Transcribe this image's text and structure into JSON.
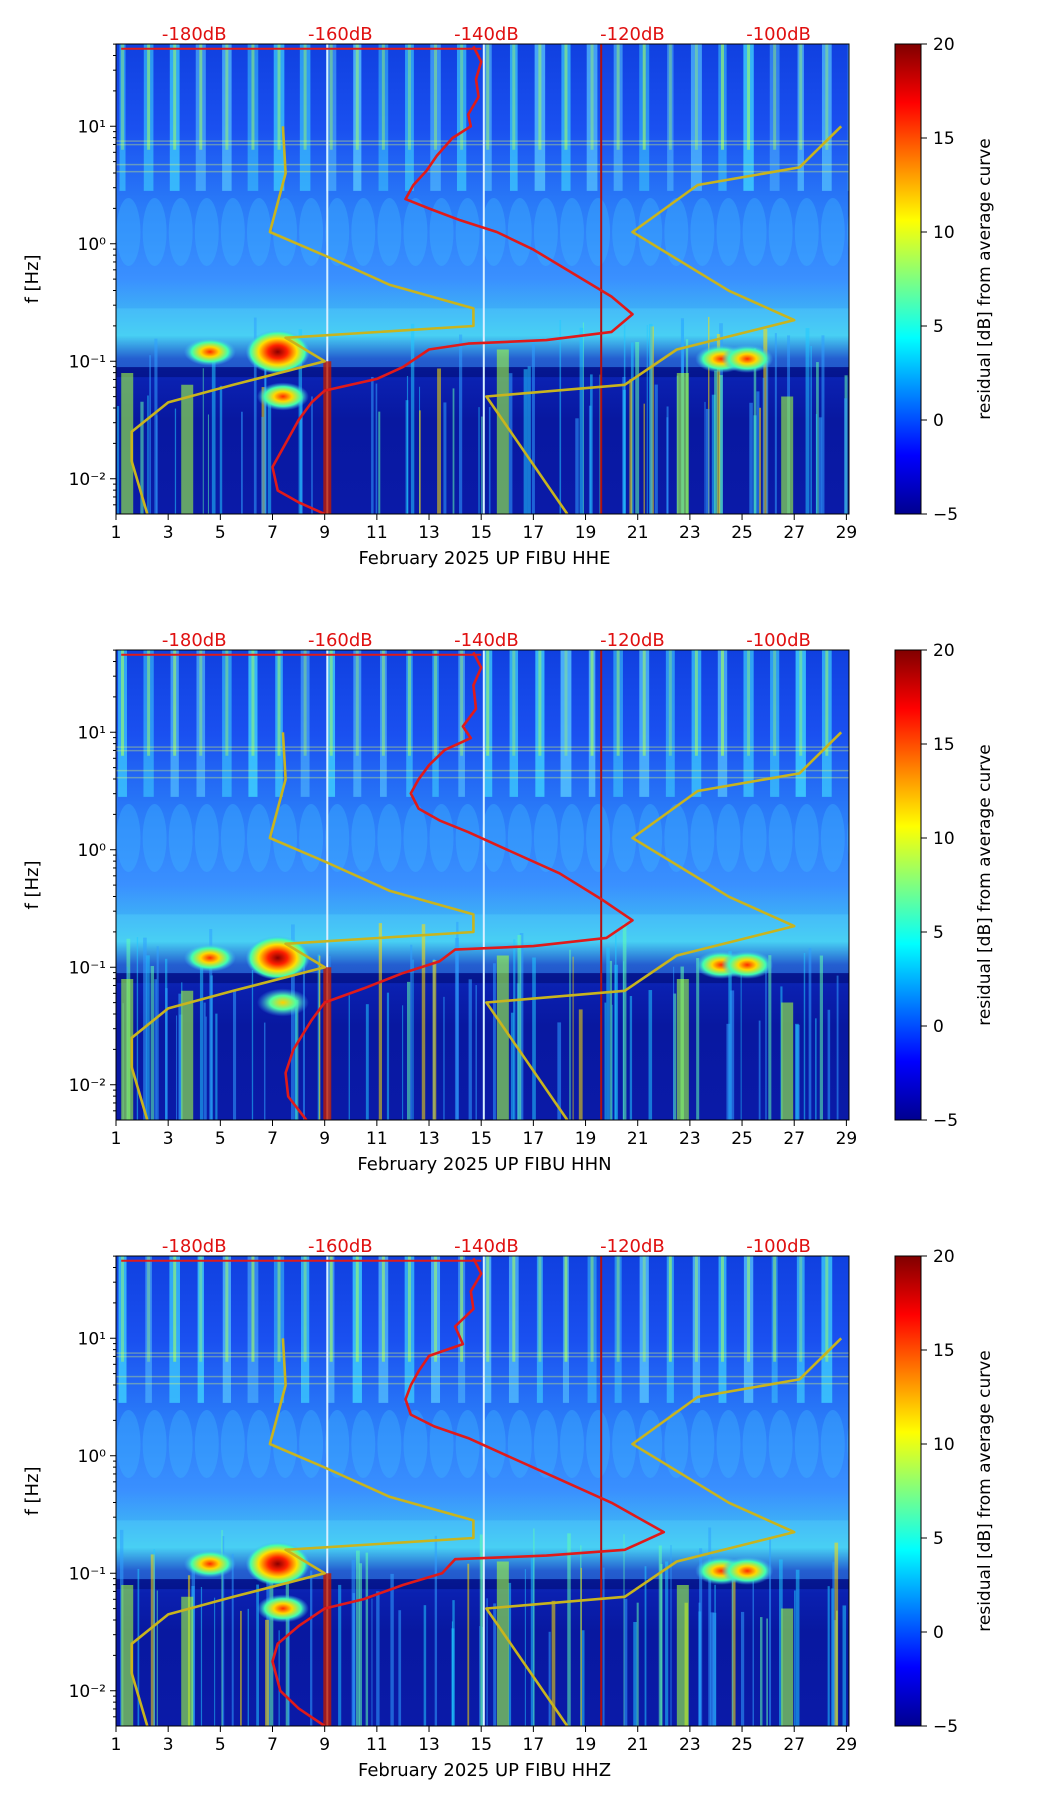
{
  "chart_data": [
    {
      "type": "heatmap",
      "component": "HHE",
      "xlabel": "February 2025 UP FIBU  HHE",
      "ylabel": "f [Hz]",
      "x_range": [
        1,
        29.1
      ],
      "y_range_log10": [
        -2.3,
        1.7
      ],
      "x_ticks": [
        1,
        3,
        5,
        7,
        9,
        11,
        13,
        15,
        17,
        19,
        21,
        23,
        25,
        27,
        29
      ],
      "y_ticks": [
        {
          "value": -2,
          "label": "10⁻²"
        },
        {
          "value": -1,
          "label": "10⁻¹"
        },
        {
          "value": 0,
          "label": "10⁰"
        },
        {
          "value": 1,
          "label": "10¹"
        }
      ],
      "db_scale": {
        "labels": [
          "-180dB",
          "-160dB",
          "-140dB",
          "-120dB",
          "-100dB"
        ],
        "positions_x": [
          4.0,
          9.6,
          15.2,
          20.8,
          26.4
        ],
        "color": "#e01010"
      },
      "colorbar": {
        "label": "residual [dB] from average curve",
        "range": [
          -5,
          20
        ],
        "ticks": [
          -5,
          0,
          5,
          10,
          15,
          20
        ]
      },
      "vertical_lines": [
        {
          "x": 9.1,
          "color": "#d8f0ff"
        },
        {
          "x": 15.1,
          "color": "#d8f0ff"
        },
        {
          "x": 19.6,
          "color": "#b01010"
        }
      ],
      "series": [
        {
          "name": "average PSD curve (red)",
          "color": "#e01a1a",
          "points": [
            [
              14.7,
              1.68
            ],
            [
              15.0,
              1.55
            ],
            [
              14.8,
              1.4
            ],
            [
              14.9,
              1.25
            ],
            [
              14.5,
              1.1
            ],
            [
              14.6,
              1.0
            ],
            [
              13.9,
              0.9
            ],
            [
              13.3,
              0.75
            ],
            [
              12.9,
              0.62
            ],
            [
              12.4,
              0.5
            ],
            [
              12.1,
              0.38
            ],
            [
              13.0,
              0.3
            ],
            [
              14.2,
              0.2
            ],
            [
              15.6,
              0.1
            ],
            [
              17.0,
              -0.05
            ],
            [
              18.5,
              -0.25
            ],
            [
              20.0,
              -0.45
            ],
            [
              20.8,
              -0.6
            ],
            [
              20.0,
              -0.75
            ],
            [
              17.5,
              -0.82
            ],
            [
              14.5,
              -0.85
            ],
            [
              13.0,
              -0.9
            ],
            [
              12.0,
              -1.05
            ],
            [
              11.0,
              -1.15
            ],
            [
              9.0,
              -1.25
            ],
            [
              8.5,
              -1.35
            ],
            [
              8.0,
              -1.5
            ],
            [
              7.0,
              -1.9
            ],
            [
              7.2,
              -2.1
            ],
            [
              8.0,
              -2.2
            ],
            [
              9.0,
              -2.3
            ]
          ]
        },
        {
          "name": "low noise model (yellow)",
          "color": "#c8b41e",
          "points": [
            [
              2.2,
              -2.3
            ],
            [
              1.6,
              -1.85
            ],
            [
              1.6,
              -1.6
            ],
            [
              3.0,
              -1.35
            ],
            [
              5.5,
              -1.2
            ],
            [
              9.0,
              -1.0
            ],
            [
              7.5,
              -0.8
            ],
            [
              14.7,
              -0.7
            ],
            [
              14.7,
              -0.55
            ],
            [
              11.5,
              -0.35
            ],
            [
              9.0,
              -0.1
            ],
            [
              6.9,
              0.1
            ],
            [
              7.5,
              0.6
            ],
            [
              7.4,
              1.0
            ]
          ]
        },
        {
          "name": "high noise model (yellow)",
          "color": "#c8b41e",
          "points": [
            [
              18.3,
              -2.3
            ],
            [
              15.2,
              -1.3
            ],
            [
              20.5,
              -1.2
            ],
            [
              22.5,
              -0.9
            ],
            [
              27.0,
              -0.65
            ],
            [
              24.5,
              -0.4
            ],
            [
              20.8,
              0.1
            ],
            [
              23.3,
              0.5
            ],
            [
              27.2,
              0.65
            ],
            [
              28.8,
              1.0
            ]
          ]
        }
      ],
      "hot_spots": [
        {
          "day": 4.6,
          "log_f": -0.92,
          "intensity": "high"
        },
        {
          "day": 7.2,
          "log_f": -0.92,
          "intensity": "very high"
        },
        {
          "day": 7.4,
          "log_f": -1.3,
          "intensity": "high"
        },
        {
          "day": 24.2,
          "log_f": -0.98,
          "intensity": "high"
        },
        {
          "day": 25.2,
          "log_f": -0.98,
          "intensity": "high"
        }
      ]
    },
    {
      "type": "heatmap",
      "component": "HHN",
      "xlabel": "February 2025 UP FIBU  HHN",
      "ylabel": "f [Hz]",
      "x_range": [
        1,
        29.1
      ],
      "y_range_log10": [
        -2.3,
        1.7
      ],
      "x_ticks": [
        1,
        3,
        5,
        7,
        9,
        11,
        13,
        15,
        17,
        19,
        21,
        23,
        25,
        27,
        29
      ],
      "y_ticks": [
        {
          "value": -2,
          "label": "10⁻²"
        },
        {
          "value": -1,
          "label": "10⁻¹"
        },
        {
          "value": 0,
          "label": "10⁰"
        },
        {
          "value": 1,
          "label": "10¹"
        }
      ],
      "db_scale": {
        "labels": [
          "-180dB",
          "-160dB",
          "-140dB",
          "-120dB",
          "-100dB"
        ],
        "positions_x": [
          4.0,
          9.6,
          15.2,
          20.8,
          26.4
        ],
        "color": "#e01010"
      },
      "colorbar": {
        "label": "residual [dB] from average curve",
        "range": [
          -5,
          20
        ],
        "ticks": [
          -5,
          0,
          5,
          10,
          15,
          20
        ]
      },
      "vertical_lines": [
        {
          "x": 9.1,
          "color": "#d8f0ff"
        },
        {
          "x": 15.1,
          "color": "#d8f0ff"
        },
        {
          "x": 19.6,
          "color": "#b01010"
        }
      ],
      "series": [
        {
          "name": "average PSD curve (red)",
          "color": "#e01a1a",
          "points": [
            [
              14.7,
              1.68
            ],
            [
              15.0,
              1.55
            ],
            [
              14.7,
              1.4
            ],
            [
              14.8,
              1.2
            ],
            [
              14.3,
              1.05
            ],
            [
              14.6,
              0.95
            ],
            [
              13.6,
              0.85
            ],
            [
              13.0,
              0.72
            ],
            [
              12.6,
              0.6
            ],
            [
              12.3,
              0.48
            ],
            [
              12.6,
              0.35
            ],
            [
              13.4,
              0.25
            ],
            [
              14.5,
              0.15
            ],
            [
              16.0,
              0.0
            ],
            [
              18.0,
              -0.2
            ],
            [
              19.6,
              -0.42
            ],
            [
              20.8,
              -0.6
            ],
            [
              19.8,
              -0.75
            ],
            [
              17.0,
              -0.82
            ],
            [
              14.0,
              -0.85
            ],
            [
              13.4,
              -0.95
            ],
            [
              12.0,
              -1.05
            ],
            [
              10.5,
              -1.18
            ],
            [
              9.0,
              -1.3
            ],
            [
              8.5,
              -1.45
            ],
            [
              7.8,
              -1.7
            ],
            [
              7.5,
              -1.9
            ],
            [
              7.6,
              -2.1
            ],
            [
              8.3,
              -2.3
            ]
          ]
        },
        {
          "name": "low noise model (yellow)",
          "color": "#c8b41e",
          "points": [
            [
              2.2,
              -2.3
            ],
            [
              1.6,
              -1.85
            ],
            [
              1.6,
              -1.6
            ],
            [
              3.0,
              -1.35
            ],
            [
              5.5,
              -1.2
            ],
            [
              9.0,
              -1.0
            ],
            [
              7.5,
              -0.8
            ],
            [
              14.7,
              -0.7
            ],
            [
              14.7,
              -0.55
            ],
            [
              11.5,
              -0.35
            ],
            [
              9.0,
              -0.1
            ],
            [
              6.9,
              0.1
            ],
            [
              7.5,
              0.6
            ],
            [
              7.4,
              1.0
            ]
          ]
        },
        {
          "name": "high noise model (yellow)",
          "color": "#c8b41e",
          "points": [
            [
              18.3,
              -2.3
            ],
            [
              15.2,
              -1.3
            ],
            [
              20.5,
              -1.2
            ],
            [
              22.5,
              -0.9
            ],
            [
              27.0,
              -0.65
            ],
            [
              24.5,
              -0.4
            ],
            [
              20.8,
              0.1
            ],
            [
              23.3,
              0.5
            ],
            [
              27.2,
              0.65
            ],
            [
              28.8,
              1.0
            ]
          ]
        }
      ],
      "hot_spots": [
        {
          "day": 4.6,
          "log_f": -0.92,
          "intensity": "high"
        },
        {
          "day": 7.2,
          "log_f": -0.92,
          "intensity": "very high"
        },
        {
          "day": 7.4,
          "log_f": -1.3,
          "intensity": "medium"
        },
        {
          "day": 24.2,
          "log_f": -0.98,
          "intensity": "high"
        },
        {
          "day": 25.2,
          "log_f": -0.98,
          "intensity": "high"
        }
      ]
    },
    {
      "type": "heatmap",
      "component": "HHZ",
      "xlabel": "February 2025 UP FIBU  HHZ",
      "ylabel": "f [Hz]",
      "x_range": [
        1,
        29.1
      ],
      "y_range_log10": [
        -2.3,
        1.7
      ],
      "x_ticks": [
        1,
        3,
        5,
        7,
        9,
        11,
        13,
        15,
        17,
        19,
        21,
        23,
        25,
        27,
        29
      ],
      "y_ticks": [
        {
          "value": -2,
          "label": "10⁻²"
        },
        {
          "value": -1,
          "label": "10⁻¹"
        },
        {
          "value": 0,
          "label": "10⁰"
        },
        {
          "value": 1,
          "label": "10¹"
        }
      ],
      "db_scale": {
        "labels": [
          "-180dB",
          "-160dB",
          "-140dB",
          "-120dB",
          "-100dB"
        ],
        "positions_x": [
          4.0,
          9.6,
          15.2,
          20.8,
          26.4
        ],
        "color": "#e01010"
      },
      "colorbar": {
        "label": "residual [dB] from average curve",
        "range": [
          -5,
          20
        ],
        "ticks": [
          -5,
          0,
          5,
          10,
          15,
          20
        ]
      },
      "vertical_lines": [
        {
          "x": 9.1,
          "color": "#d8f0ff"
        },
        {
          "x": 15.1,
          "color": "#d8f0ff"
        },
        {
          "x": 19.6,
          "color": "#b01010"
        }
      ],
      "series": [
        {
          "name": "average PSD curve (red)",
          "color": "#e01a1a",
          "points": [
            [
              14.7,
              1.68
            ],
            [
              15.0,
              1.55
            ],
            [
              14.6,
              1.4
            ],
            [
              14.7,
              1.25
            ],
            [
              14.0,
              1.1
            ],
            [
              14.3,
              0.95
            ],
            [
              13.0,
              0.85
            ],
            [
              12.6,
              0.72
            ],
            [
              12.3,
              0.6
            ],
            [
              12.1,
              0.48
            ],
            [
              12.3,
              0.35
            ],
            [
              13.2,
              0.25
            ],
            [
              14.5,
              0.15
            ],
            [
              16.0,
              0.0
            ],
            [
              18.0,
              -0.2
            ],
            [
              20.0,
              -0.4
            ],
            [
              22.0,
              -0.65
            ],
            [
              20.5,
              -0.8
            ],
            [
              17.5,
              -0.85
            ],
            [
              14.0,
              -0.88
            ],
            [
              13.5,
              -1.0
            ],
            [
              12.0,
              -1.1
            ],
            [
              10.5,
              -1.22
            ],
            [
              9.0,
              -1.3
            ],
            [
              8.0,
              -1.45
            ],
            [
              7.2,
              -1.6
            ],
            [
              7.0,
              -1.75
            ],
            [
              7.3,
              -2.0
            ],
            [
              8.0,
              -2.15
            ],
            [
              9.0,
              -2.3
            ]
          ]
        },
        {
          "name": "low noise model (yellow)",
          "color": "#c8b41e",
          "points": [
            [
              2.2,
              -2.3
            ],
            [
              1.6,
              -1.85
            ],
            [
              1.6,
              -1.6
            ],
            [
              3.0,
              -1.35
            ],
            [
              5.5,
              -1.2
            ],
            [
              9.0,
              -1.0
            ],
            [
              7.5,
              -0.8
            ],
            [
              14.7,
              -0.7
            ],
            [
              14.7,
              -0.55
            ],
            [
              11.5,
              -0.35
            ],
            [
              9.0,
              -0.1
            ],
            [
              6.9,
              0.1
            ],
            [
              7.5,
              0.6
            ],
            [
              7.4,
              1.0
            ]
          ]
        },
        {
          "name": "high noise model (yellow)",
          "color": "#c8b41e",
          "points": [
            [
              18.3,
              -2.3
            ],
            [
              15.2,
              -1.3
            ],
            [
              20.5,
              -1.2
            ],
            [
              22.5,
              -0.9
            ],
            [
              27.0,
              -0.65
            ],
            [
              24.5,
              -0.4
            ],
            [
              20.8,
              0.1
            ],
            [
              23.3,
              0.5
            ],
            [
              27.2,
              0.65
            ],
            [
              28.8,
              1.0
            ]
          ]
        }
      ],
      "hot_spots": [
        {
          "day": 4.6,
          "log_f": -0.92,
          "intensity": "high"
        },
        {
          "day": 7.2,
          "log_f": -0.92,
          "intensity": "very high"
        },
        {
          "day": 7.4,
          "log_f": -1.3,
          "intensity": "high"
        },
        {
          "day": 24.2,
          "log_f": -0.98,
          "intensity": "high"
        },
        {
          "day": 25.2,
          "log_f": -0.98,
          "intensity": "high"
        }
      ]
    }
  ]
}
